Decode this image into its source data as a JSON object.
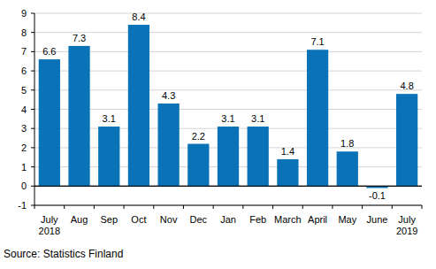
{
  "chart_data": {
    "type": "bar",
    "categories": [
      "July 2018",
      "Aug",
      "Sep",
      "Oct",
      "Nov",
      "Dec",
      "Jan",
      "Feb",
      "March",
      "April",
      "May",
      "June",
      "July 2019"
    ],
    "values": [
      6.6,
      7.3,
      3.1,
      8.4,
      4.3,
      2.2,
      3.1,
      3.1,
      1.4,
      7.1,
      1.8,
      -0.1,
      4.8
    ],
    "color": "#0a73b7",
    "ylim": [
      -1,
      9
    ],
    "yticks": [
      -1,
      0,
      1,
      2,
      3,
      4,
      5,
      6,
      7,
      8,
      9
    ],
    "grid": true,
    "data_labels": true,
    "source": "Source: Statistics Finland"
  }
}
